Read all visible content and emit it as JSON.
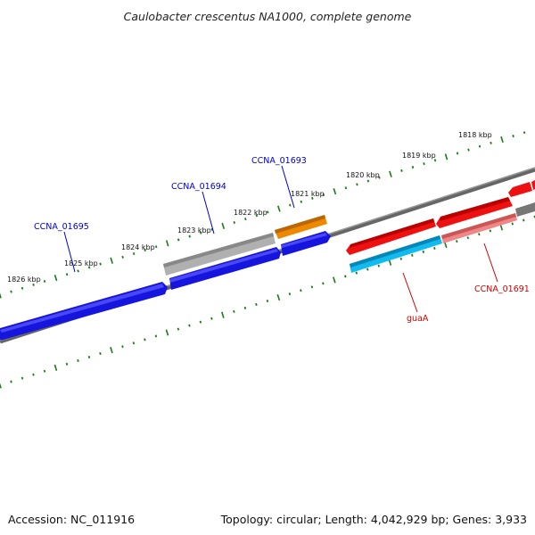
{
  "title": "Caulobacter crescentus NA1000, complete genome",
  "footer": {
    "accession": "Accession: NC_011916",
    "summary": "Topology: circular; Length: 4,042,929 bp; Genes: 3,933"
  },
  "colors": {
    "forward_dark": "#1010e0",
    "forward_light": "#4040ff",
    "reverse_red": "#ee1111",
    "reverse_pink": "#ee8888",
    "orange": "#ee8800",
    "grey_gene": "#b8b8b8",
    "cyan": "#11bbee",
    "backbone": "#777777",
    "ticks": "#1a7a1a",
    "label_blue": "#0000cc",
    "label_red": "#cc0000"
  },
  "ticks": [
    {
      "label": "1826 kbp"
    },
    {
      "label": "1825 kbp"
    },
    {
      "label": "1824 kbp"
    },
    {
      "label": "1823 kbp"
    },
    {
      "label": "1822 kbp"
    },
    {
      "label": "1821 kbp"
    },
    {
      "label": "1820 kbp"
    },
    {
      "label": "1819 kbp"
    },
    {
      "label": "1818 kbp"
    }
  ],
  "gene_labels": [
    {
      "name": "CCNA_01695",
      "color": "blue"
    },
    {
      "name": "CCNA_01694",
      "color": "blue"
    },
    {
      "name": "CCNA_01693",
      "color": "blue"
    },
    {
      "name": "guaA",
      "color": "red"
    },
    {
      "name": "CCNA_01691",
      "color": "red"
    }
  ]
}
